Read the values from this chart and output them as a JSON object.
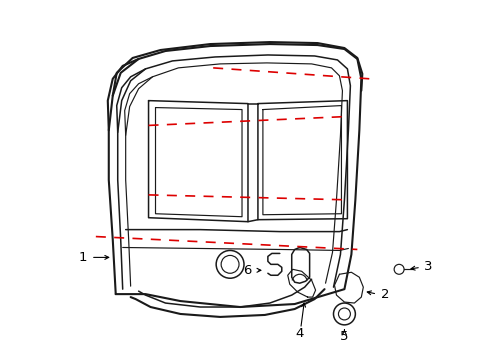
{
  "bg_color": "#ffffff",
  "line_color": "#1a1a1a",
  "red_dash_color": "#dd0000",
  "label_color": "#000000",
  "fig_width": 4.89,
  "fig_height": 3.6,
  "dpi": 100
}
